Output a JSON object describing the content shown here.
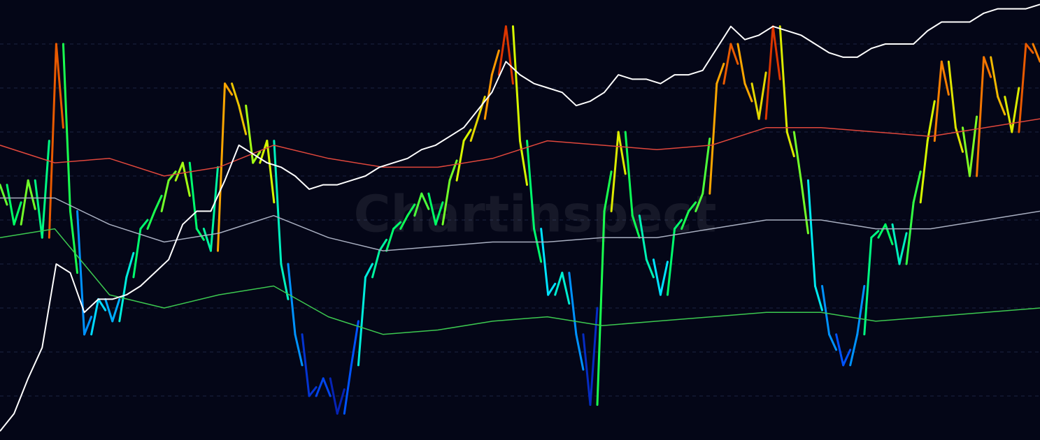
{
  "chart_data": {
    "type": "line",
    "watermark": "Chartinspect",
    "ylim": [
      0,
      100
    ],
    "yticks": [
      10,
      20,
      30,
      40,
      50,
      60,
      70,
      80,
      90
    ],
    "grid": true,
    "series": [
      {
        "colorscale": [
          "#0a0a8c",
          "#0050ff",
          "#00e6ff",
          "#00ff5a",
          "#d2ff00",
          "#ff9600",
          "#c80000"
        ],
        "values": [
          58,
          49,
          59,
          46,
          90,
          52,
          24,
          32,
          27,
          37,
          48,
          52,
          59,
          63,
          48,
          43,
          81,
          76,
          63,
          68,
          40,
          24,
          10,
          14,
          6,
          17,
          37,
          43,
          48,
          51,
          56,
          49,
          59,
          68,
          73,
          83,
          94,
          68,
          48,
          33,
          38,
          24,
          8,
          52,
          70,
          51,
          41,
          33,
          48,
          52,
          56,
          81,
          90,
          81,
          73,
          94,
          70,
          59,
          35,
          24,
          17,
          24,
          46,
          49,
          40,
          54,
          68,
          86,
          71,
          60,
          87,
          78,
          70,
          90,
          86
        ]
      },
      {
        "color": "#e0473c",
        "values": [
          67,
          63,
          64,
          60,
          62,
          67,
          64,
          62,
          62,
          64,
          68,
          67,
          66,
          67,
          71,
          71,
          70,
          69,
          71,
          73
        ]
      },
      {
        "color": "#a8aec0",
        "values": [
          55,
          55,
          49,
          45,
          47,
          51,
          46,
          43,
          44,
          45,
          45,
          46,
          46,
          48,
          50,
          50,
          48,
          48,
          50,
          52
        ]
      },
      {
        "color": "#3cc850",
        "values": [
          46,
          48,
          33,
          30,
          33,
          35,
          28,
          24,
          25,
          27,
          28,
          26,
          27,
          28,
          29,
          29,
          27,
          28,
          29,
          30
        ]
      },
      {
        "color": "#ffffff",
        "values": [
          2,
          6,
          14,
          21,
          40,
          38,
          29,
          32,
          32,
          33,
          35,
          38,
          41,
          49,
          52,
          52,
          59,
          67,
          65,
          63,
          62,
          60,
          57,
          58,
          58,
          59,
          60,
          62,
          63,
          64,
          66,
          67,
          69,
          71,
          75,
          79,
          86,
          83,
          81,
          80,
          79,
          76,
          77,
          79,
          83,
          82,
          82,
          81,
          83,
          83,
          84,
          89,
          94,
          91,
          92,
          94,
          93,
          92,
          90,
          88,
          87,
          87,
          89,
          90,
          90,
          90,
          93,
          95,
          95,
          95,
          97,
          98,
          98,
          98,
          99
        ]
      }
    ]
  }
}
